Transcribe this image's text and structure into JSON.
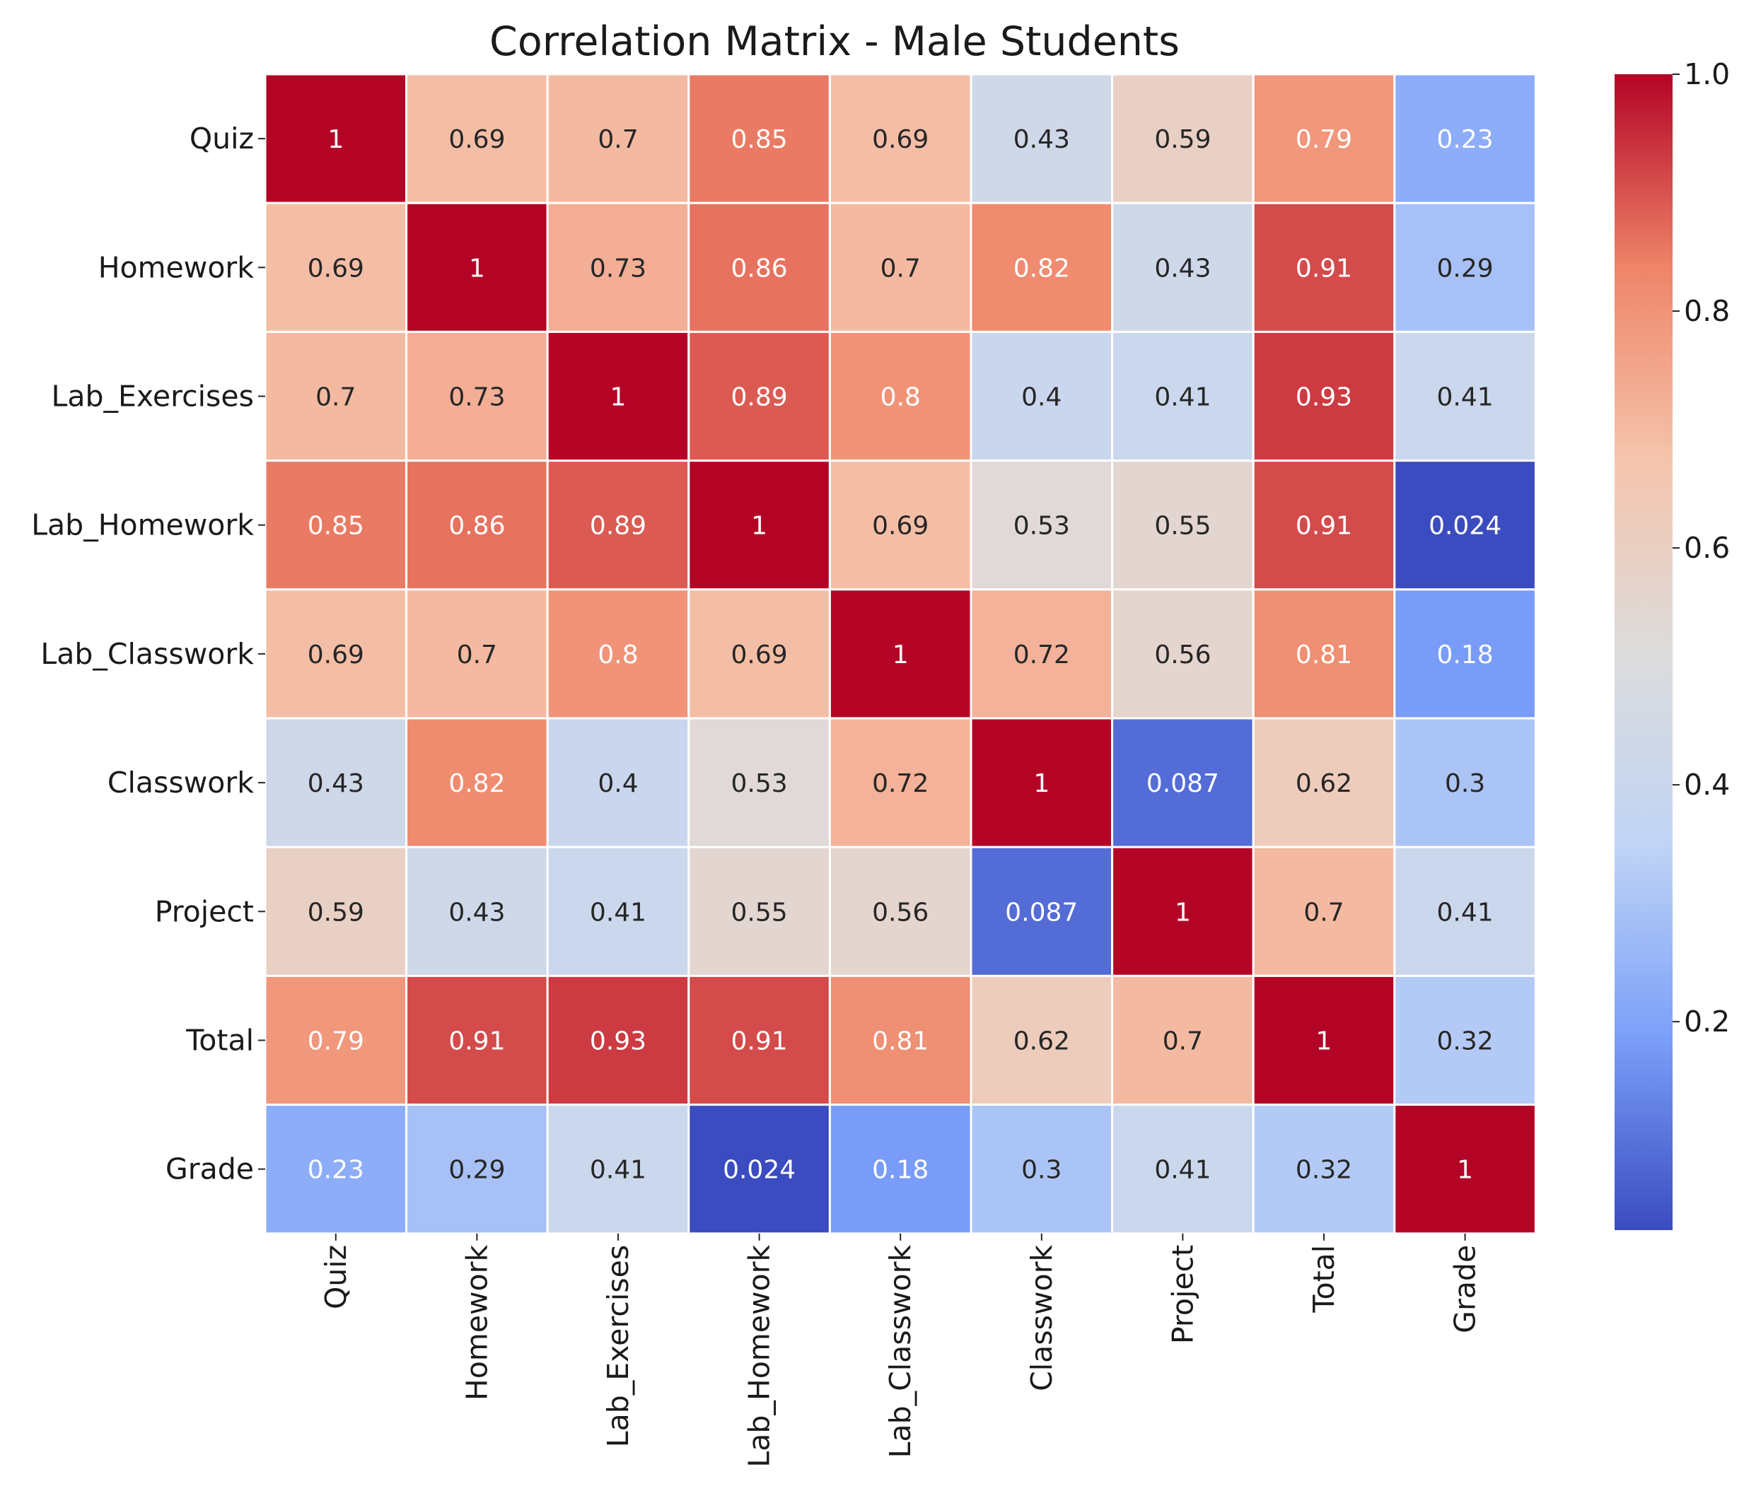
{
  "chart_data": {
    "type": "heatmap",
    "title": "Correlation Matrix - Male Students",
    "xlabel": "",
    "ylabel": "",
    "variables": [
      "Quiz",
      "Homework",
      "Lab_Exercises",
      "Lab_Homework",
      "Lab_Classwork",
      "Classwork",
      "Project",
      "Total",
      "Grade"
    ],
    "values": [
      [
        1,
        0.69,
        0.7,
        0.85,
        0.69,
        0.43,
        0.59,
        0.79,
        0.23
      ],
      [
        0.69,
        1,
        0.73,
        0.86,
        0.7,
        0.82,
        0.43,
        0.91,
        0.29
      ],
      [
        0.7,
        0.73,
        1,
        0.89,
        0.8,
        0.4,
        0.41,
        0.93,
        0.41
      ],
      [
        0.85,
        0.86,
        0.89,
        1,
        0.69,
        0.53,
        0.55,
        0.91,
        0.024
      ],
      [
        0.69,
        0.7,
        0.8,
        0.69,
        1,
        0.72,
        0.56,
        0.81,
        0.18
      ],
      [
        0.43,
        0.82,
        0.4,
        0.53,
        0.72,
        1,
        0.087,
        0.62,
        0.3
      ],
      [
        0.59,
        0.43,
        0.41,
        0.55,
        0.56,
        0.087,
        1,
        0.7,
        0.41
      ],
      [
        0.79,
        0.91,
        0.93,
        0.91,
        0.81,
        0.62,
        0.7,
        1,
        0.32
      ],
      [
        0.23,
        0.29,
        0.41,
        0.024,
        0.18,
        0.3,
        0.41,
        0.32,
        1
      ]
    ],
    "value_labels": [
      [
        "1",
        "0.69",
        "0.7",
        "0.85",
        "0.69",
        "0.43",
        "0.59",
        "0.79",
        "0.23"
      ],
      [
        "0.69",
        "1",
        "0.73",
        "0.86",
        "0.7",
        "0.82",
        "0.43",
        "0.91",
        "0.29"
      ],
      [
        "0.7",
        "0.73",
        "1",
        "0.89",
        "0.8",
        "0.4",
        "0.41",
        "0.93",
        "0.41"
      ],
      [
        "0.85",
        "0.86",
        "0.89",
        "1",
        "0.69",
        "0.53",
        "0.55",
        "0.91",
        "0.024"
      ],
      [
        "0.69",
        "0.7",
        "0.8",
        "0.69",
        "1",
        "0.72",
        "0.56",
        "0.81",
        "0.18"
      ],
      [
        "0.43",
        "0.82",
        "0.4",
        "0.53",
        "0.72",
        "1",
        "0.087",
        "0.62",
        "0.3"
      ],
      [
        "0.59",
        "0.43",
        "0.41",
        "0.55",
        "0.56",
        "0.087",
        "1",
        "0.7",
        "0.41"
      ],
      [
        "0.79",
        "0.91",
        "0.93",
        "0.91",
        "0.81",
        "0.62",
        "0.7",
        "1",
        "0.32"
      ],
      [
        "0.23",
        "0.29",
        "0.41",
        "0.024",
        "0.18",
        "0.3",
        "0.41",
        "0.32",
        "1"
      ]
    ],
    "colormap": "coolwarm",
    "colormap_stops": [
      "#3b4cc0",
      "#7b9ff9",
      "#c0d4f5",
      "#dddcdc",
      "#f5c4ac",
      "#ee8468",
      "#b40426"
    ],
    "color_range": [
      0.024,
      1.0
    ],
    "colorbar_ticks": [
      0.2,
      0.4,
      0.6,
      0.8,
      1.0
    ],
    "colorbar_tick_labels": [
      "0.2",
      "0.4",
      "0.6",
      "0.8",
      "1.0"
    ],
    "cell_border_color": "#ffffff",
    "text_color_dark": "#262626",
    "text_color_light": "#ffffff",
    "legend": "colorbar-right"
  }
}
